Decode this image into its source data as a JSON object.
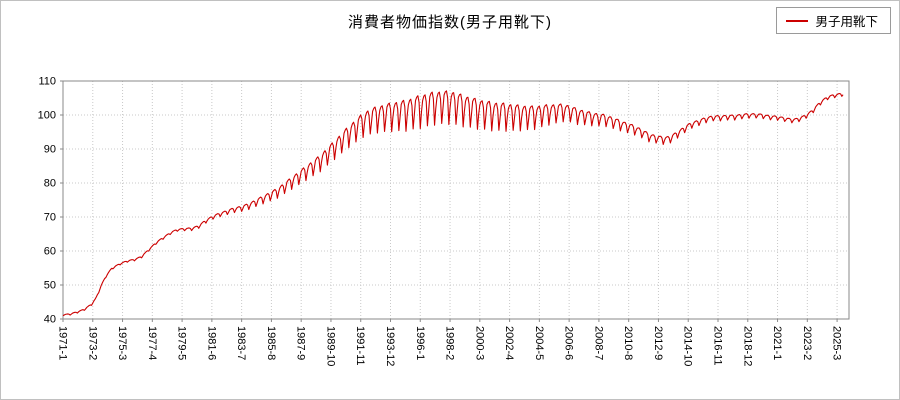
{
  "title": "消費者物価指数(男子用靴下)",
  "legend": {
    "label": "男子用靴下",
    "color": "#cc0000"
  },
  "chart_data": {
    "type": "line",
    "title": "消費者物価指数(男子用靴下)",
    "ylabel": "",
    "xlabel": "",
    "ylim": [
      40,
      110
    ],
    "yticks": [
      40,
      50,
      60,
      70,
      80,
      90,
      100,
      110
    ],
    "xtick_labels": [
      "1971-1",
      "1973-2",
      "1975-3",
      "1977-4",
      "1979-5",
      "1981-6",
      "1983-7",
      "1985-8",
      "1987-9",
      "1989-10",
      "1991-11",
      "1993-12",
      "1996-1",
      "1998-2",
      "2000-3",
      "2002-4",
      "2004-5",
      "2006-6",
      "2008-7",
      "2010-8",
      "2012-9",
      "2014-10",
      "2016-11",
      "2018-12",
      "2021-1",
      "2023-2",
      "2025-3"
    ],
    "xtick_step_months": 25,
    "x_total_months": 660,
    "grid": true,
    "grid_color": "#c9c9c9",
    "axis_color": "#8a8a8a",
    "legend_position": "top-right",
    "series": [
      {
        "name": "男子用靴下",
        "color": "#cc0000",
        "x_start": "1971-1",
        "x_end": "2025-8",
        "monthly_model": {
          "trend_anchors": [
            [
              1971.0,
              41.2
            ],
            [
              1971.5,
              41.4
            ],
            [
              1972.0,
              42.0
            ],
            [
              1972.5,
              42.8
            ],
            [
              1973.0,
              44.3
            ],
            [
              1973.3,
              46.0
            ],
            [
              1973.7,
              50.0
            ],
            [
              1974.0,
              52.5
            ],
            [
              1974.4,
              54.8
            ],
            [
              1975.0,
              56.2
            ],
            [
              1975.5,
              57.0
            ],
            [
              1976.0,
              57.4
            ],
            [
              1976.5,
              58.3
            ],
            [
              1977.0,
              60.3
            ],
            [
              1977.5,
              62.3
            ],
            [
              1978.0,
              63.8
            ],
            [
              1978.5,
              65.2
            ],
            [
              1979.0,
              66.2
            ],
            [
              1979.5,
              66.4
            ],
            [
              1980.0,
              66.5
            ],
            [
              1980.5,
              67.2
            ],
            [
              1981.0,
              68.8
            ],
            [
              1981.5,
              70.0
            ],
            [
              1982.0,
              70.8
            ],
            [
              1982.5,
              71.5
            ],
            [
              1983.0,
              72.2
            ],
            [
              1983.5,
              72.6
            ],
            [
              1984.0,
              73.3
            ],
            [
              1984.5,
              74.3
            ],
            [
              1985.0,
              75.3
            ],
            [
              1985.5,
              76.3
            ],
            [
              1986.0,
              77.3
            ],
            [
              1986.5,
              78.8
            ],
            [
              1987.0,
              80.3
            ],
            [
              1987.5,
              81.8
            ],
            [
              1988.0,
              83.3
            ],
            [
              1988.5,
              84.8
            ],
            [
              1989.0,
              86.3
            ],
            [
              1989.5,
              88.3
            ],
            [
              1990.0,
              90.3
            ],
            [
              1990.5,
              92.3
            ],
            [
              1991.0,
              94.3
            ],
            [
              1991.5,
              96.0
            ],
            [
              1992.0,
              97.8
            ],
            [
              1992.5,
              98.8
            ],
            [
              1993.0,
              99.5
            ],
            [
              1994.0,
              100.3
            ],
            [
              1995.0,
              100.8
            ],
            [
              1996.0,
              102.0
            ],
            [
              1997.0,
              103.0
            ],
            [
              1997.5,
              103.2
            ],
            [
              1998.2,
              103.2
            ],
            [
              1999.0,
              102.2
            ],
            [
              2000.0,
              101.2
            ],
            [
              2001.0,
              100.5
            ],
            [
              2002.0,
              100.2
            ],
            [
              2003.0,
              99.9
            ],
            [
              2004.0,
              99.9
            ],
            [
              2005.0,
              100.7
            ],
            [
              2006.0,
              101.2
            ],
            [
              2006.5,
              100.8
            ],
            [
              2007.0,
              100.0
            ],
            [
              2008.0,
              99.2
            ],
            [
              2009.0,
              98.7
            ],
            [
              2010.0,
              97.2
            ],
            [
              2011.0,
              95.8
            ],
            [
              2011.5,
              94.8
            ],
            [
              2012.0,
              93.6
            ],
            [
              2012.5,
              93.1
            ],
            [
              2013.0,
              92.7
            ],
            [
              2013.5,
              93.0
            ],
            [
              2014.0,
              94.4
            ],
            [
              2014.5,
              95.9
            ],
            [
              2015.0,
              97.2
            ],
            [
              2015.5,
              97.9
            ],
            [
              2016.0,
              98.7
            ],
            [
              2016.5,
              99.2
            ],
            [
              2017.0,
              99.2
            ],
            [
              2017.5,
              99.4
            ],
            [
              2018.0,
              99.4
            ],
            [
              2018.5,
              99.7
            ],
            [
              2019.0,
              99.9
            ],
            [
              2019.5,
              99.9
            ],
            [
              2020.0,
              99.7
            ],
            [
              2020.5,
              99.3
            ],
            [
              2021.0,
              99.2
            ],
            [
              2021.5,
              98.8
            ],
            [
              2022.0,
              98.4
            ],
            [
              2022.5,
              98.7
            ],
            [
              2023.0,
              99.7
            ],
            [
              2023.5,
              101.3
            ],
            [
              2024.0,
              103.6
            ],
            [
              2024.5,
              105.1
            ],
            [
              2025.0,
              105.7
            ],
            [
              2025.8,
              106.3
            ]
          ],
          "seasonal_amplitude_anchors": [
            [
              1971.0,
              0.25
            ],
            [
              1976.0,
              0.3
            ],
            [
              1979.0,
              0.4
            ],
            [
              1982.0,
              0.7
            ],
            [
              1984.0,
              1.1
            ],
            [
              1986.0,
              1.8
            ],
            [
              1988.0,
              2.6
            ],
            [
              1990.0,
              3.4
            ],
            [
              1992.0,
              4.4
            ],
            [
              1994.0,
              5.2
            ],
            [
              1996.0,
              6.0
            ],
            [
              1998.0,
              6.0
            ],
            [
              2000.0,
              5.4
            ],
            [
              2002.0,
              5.0
            ],
            [
              2004.0,
              4.2
            ],
            [
              2006.0,
              3.2
            ],
            [
              2008.0,
              2.4
            ],
            [
              2010.0,
              1.9
            ],
            [
              2012.0,
              1.5
            ],
            [
              2014.0,
              1.2
            ],
            [
              2016.0,
              1.0
            ],
            [
              2018.0,
              0.9
            ],
            [
              2020.0,
              0.8
            ],
            [
              2022.0,
              0.7
            ],
            [
              2025.8,
              0.6
            ]
          ],
          "seasonal_pattern_jan_to_dec": [
            -1.0,
            -0.2,
            0.35,
            0.55,
            0.6,
            0.25,
            -0.95,
            -0.25,
            0.45,
            0.6,
            0.65,
            0.3
          ]
        }
      }
    ]
  }
}
